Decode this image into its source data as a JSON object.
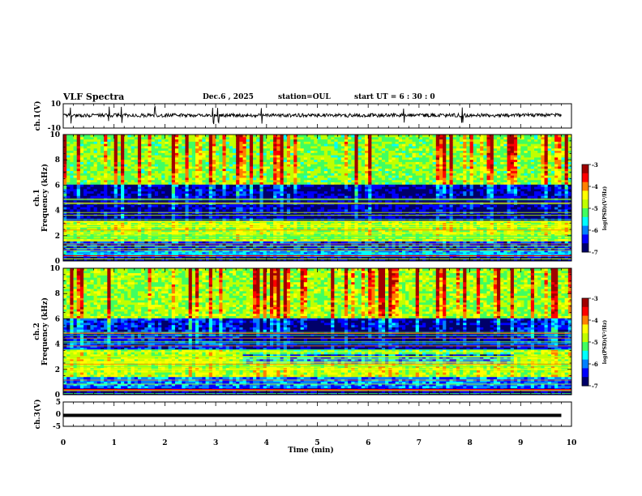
{
  "header": {
    "title": "VLF Spectra",
    "date": "Dec.6 , 2025",
    "station": "station=OUL",
    "start": "start UT = 6 : 30 : 0"
  },
  "colors": {
    "colormap": [
      "#00006a",
      "#0000ff",
      "#0080ff",
      "#00ffff",
      "#40ff60",
      "#c0ff00",
      "#ffff00",
      "#ff8000",
      "#ff0000",
      "#a00000"
    ],
    "trace": "#000000"
  },
  "chart_data": [
    {
      "id": "ch1-waveform",
      "type": "line",
      "ylabel": "ch.1(V)",
      "ylim": [
        -10,
        10
      ],
      "ytick_labels": [
        "10",
        "-10"
      ],
      "xlim": [
        0,
        10
      ],
      "description_values": {
        "baseline_V": 0.5,
        "noise_amplitude_V": 1.5,
        "max_spike_V": 6
      },
      "spike_times_min": [
        0.15,
        0.9,
        1.15,
        1.8,
        2.95,
        3.05,
        3.9,
        6.7,
        7.85
      ]
    },
    {
      "id": "ch1-spectrogram",
      "type": "heatmap",
      "ylabel": "ch.1\nFrequency (kHz)",
      "ylim": [
        0,
        10
      ],
      "yticks": [
        0,
        2,
        4,
        6,
        8,
        10
      ],
      "xlim": [
        0,
        10
      ],
      "colorbar": {
        "label": "log(PSD)(V²/Hz)",
        "range": [
          -7,
          -3
        ],
        "ticks": [
          -3,
          -4,
          -5,
          -6,
          -7
        ]
      },
      "bands_kHz": [
        {
          "range": [
            0.0,
            0.3
          ],
          "logpsd": -6.8
        },
        {
          "range": [
            0.3,
            0.9
          ],
          "logpsd": -5.8
        },
        {
          "range": [
            0.9,
            1.6
          ],
          "logpsd": -6.3
        },
        {
          "range": [
            1.6,
            3.2
          ],
          "logpsd": -4.9
        },
        {
          "range": [
            3.2,
            6.0
          ],
          "logpsd": -6.7
        },
        {
          "range": [
            6.0,
            10.0
          ],
          "logpsd": -5.0
        }
      ]
    },
    {
      "id": "ch2-spectrogram",
      "type": "heatmap",
      "ylabel": "ch.2\nFrequency (kHz)",
      "ylim": [
        0,
        10
      ],
      "yticks": [
        0,
        2,
        4,
        6,
        8,
        10
      ],
      "xlim": [
        0,
        10
      ],
      "colorbar": {
        "label": "log(PSD)(V²/Hz)",
        "range": [
          -7,
          -3
        ],
        "ticks": [
          -3,
          -4,
          -5,
          -6,
          -7
        ]
      },
      "bands_kHz": [
        {
          "range": [
            0.0,
            0.5
          ],
          "logpsd": -6.7
        },
        {
          "range": [
            0.5,
            1.5
          ],
          "logpsd": -6.0
        },
        {
          "range": [
            1.5,
            3.5
          ],
          "logpsd": -4.8
        },
        {
          "range": [
            3.5,
            6.0
          ],
          "logpsd": -6.4
        },
        {
          "range": [
            6.0,
            10.0
          ],
          "logpsd": -4.9
        }
      ],
      "quiet_period_min": [
        3.5,
        8.9
      ]
    },
    {
      "id": "ch3-waveform",
      "type": "line",
      "ylabel": "ch.3(V)",
      "ylim": [
        -5,
        5
      ],
      "ytick_labels": [
        "5",
        "0",
        "-5"
      ],
      "xlim": [
        0,
        10
      ],
      "xlabel": "Time (min)",
      "xticks": [
        0,
        1,
        2,
        3,
        4,
        5,
        6,
        7,
        8,
        9,
        10
      ],
      "description_values": {
        "constant_V": -0.5
      }
    }
  ]
}
